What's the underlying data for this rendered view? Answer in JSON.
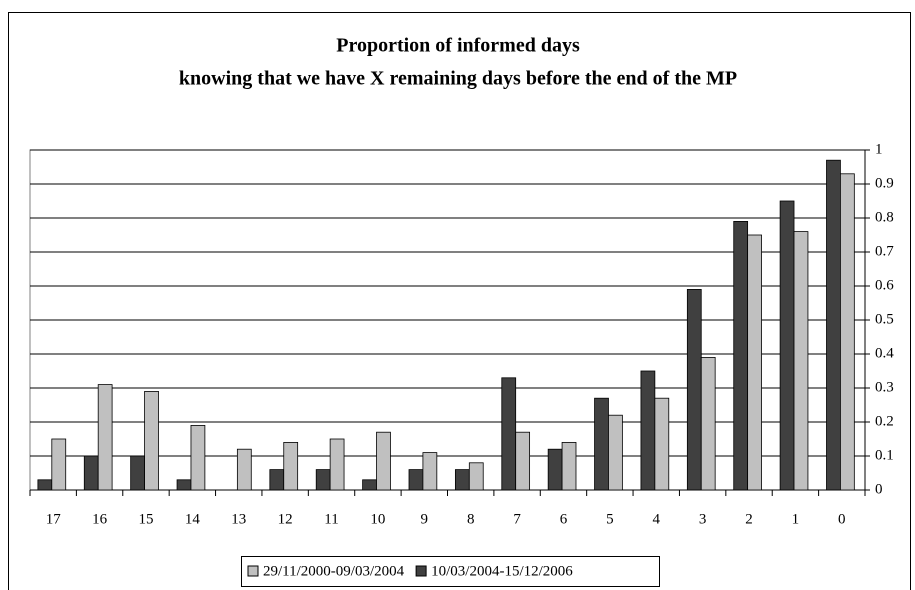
{
  "chart_data": {
    "type": "bar",
    "title": "Proportion of informed days",
    "subtitle": "knowing that we have X remaining days before the end of the MP",
    "categories": [
      "17",
      "16",
      "15",
      "14",
      "13",
      "12",
      "11",
      "10",
      "9",
      "8",
      "7",
      "6",
      "5",
      "4",
      "3",
      "2",
      "1",
      "0"
    ],
    "series": [
      {
        "name": "29/11/2000-09/03/2004",
        "color": "#c0c0c0",
        "values": [
          0.15,
          0.31,
          0.29,
          0.19,
          0.12,
          0.14,
          0.15,
          0.17,
          0.11,
          0.08,
          0.17,
          0.14,
          0.22,
          0.27,
          0.39,
          0.75,
          0.76,
          0.93
        ]
      },
      {
        "name": "10/03/2004-15/12/2006",
        "color": "#404040",
        "values": [
          0.03,
          0.1,
          0.1,
          0.03,
          0,
          0.06,
          0.06,
          0.03,
          0.06,
          0.06,
          0.33,
          0.12,
          0.27,
          0.35,
          0.59,
          0.79,
          0.85,
          0.97
        ]
      }
    ],
    "ylim": [
      0,
      1
    ],
    "yticks": [
      0,
      0.1,
      0.2,
      0.3,
      0.4,
      0.5,
      0.6,
      0.7,
      0.8,
      0.9,
      1
    ],
    "grid": true,
    "legend": "bottom"
  }
}
